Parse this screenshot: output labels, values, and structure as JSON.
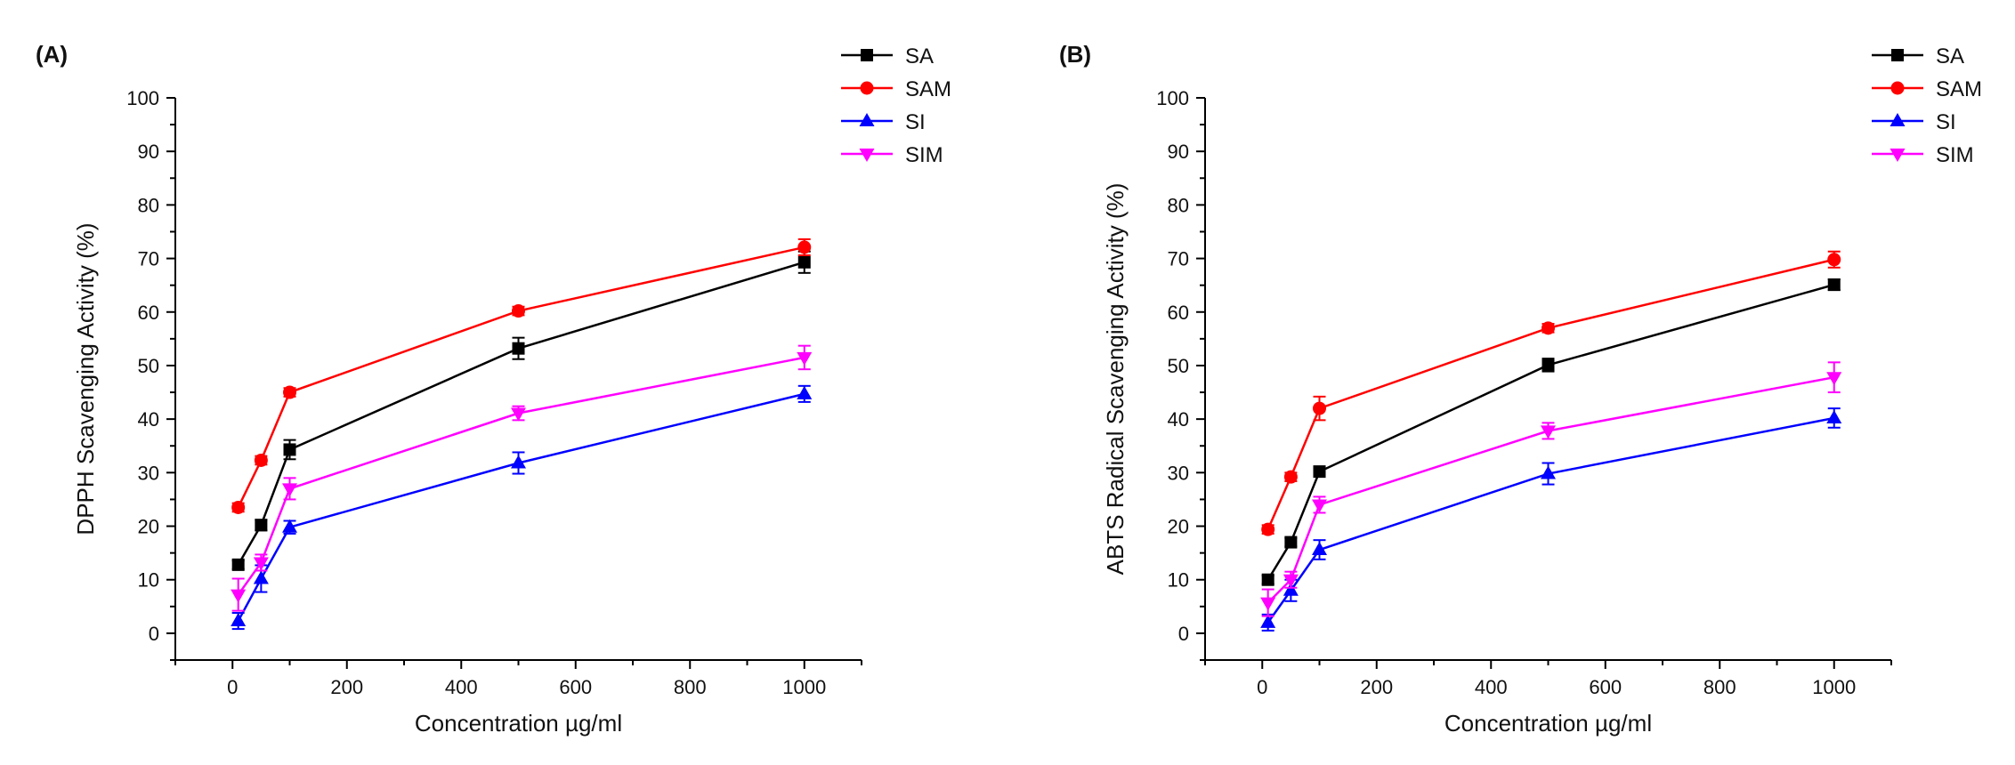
{
  "colors": {
    "SA": "#000000",
    "SAM": "#ff0000",
    "SI": "#0000ff",
    "SIM": "#ff00ff",
    "axis": "#000000"
  },
  "chart_data": [
    {
      "type": "line",
      "panel_label": "(A)",
      "xlabel": "Concentration µg/ml",
      "ylabel": "DPPH Scavenging Activity (%)",
      "xlim": [
        -100,
        1100
      ],
      "ylim": [
        -5,
        100
      ],
      "xticks": [
        0,
        200,
        400,
        600,
        800,
        1000
      ],
      "yticks": [
        0,
        10,
        20,
        30,
        40,
        50,
        60,
        70,
        80,
        90,
        100
      ],
      "x": [
        10,
        50,
        100,
        500,
        1000
      ],
      "grid": false,
      "legend": "top-right",
      "series": [
        {
          "name": "SA",
          "marker": "square",
          "values": [
            12.8,
            20.2,
            34.3,
            53.2,
            69.3
          ],
          "errors": [
            0.8,
            1.0,
            1.8,
            2.0,
            2.0
          ]
        },
        {
          "name": "SAM",
          "marker": "circle",
          "values": [
            23.5,
            32.3,
            45.0,
            60.2,
            72.1
          ],
          "errors": [
            0.8,
            0.8,
            0.8,
            0.8,
            1.5
          ]
        },
        {
          "name": "SI",
          "marker": "triangle-up",
          "values": [
            2.3,
            10.2,
            19.8,
            31.8,
            44.7
          ],
          "errors": [
            1.5,
            2.5,
            1.2,
            2.0,
            1.5
          ]
        },
        {
          "name": "SIM",
          "marker": "triangle-down",
          "values": [
            7.2,
            13.2,
            27.0,
            41.1,
            51.5
          ],
          "errors": [
            3.0,
            1.5,
            2.0,
            1.3,
            2.2
          ]
        }
      ]
    },
    {
      "type": "line",
      "panel_label": "(B)",
      "xlabel": "Concentration µg/ml",
      "ylabel": "ABTS Radical Scavenging Activity (%)",
      "xlim": [
        -100,
        1100
      ],
      "ylim": [
        -5,
        100
      ],
      "xticks": [
        0,
        200,
        400,
        600,
        800,
        1000
      ],
      "yticks": [
        0,
        10,
        20,
        30,
        40,
        50,
        60,
        70,
        80,
        90,
        100
      ],
      "x": [
        10,
        50,
        100,
        500,
        1000
      ],
      "grid": false,
      "legend": "top-right",
      "series": [
        {
          "name": "SA",
          "marker": "square",
          "values": [
            10.0,
            17.0,
            30.2,
            50.1,
            65.1
          ],
          "errors": [
            0.8,
            0.8,
            0.8,
            1.2,
            1.0
          ]
        },
        {
          "name": "SAM",
          "marker": "circle",
          "values": [
            19.4,
            29.2,
            42.0,
            57.0,
            69.8
          ],
          "errors": [
            0.8,
            0.8,
            2.2,
            0.8,
            1.5
          ]
        },
        {
          "name": "SI",
          "marker": "triangle-up",
          "values": [
            2.0,
            8.0,
            15.6,
            29.8,
            40.2
          ],
          "errors": [
            1.5,
            2.0,
            1.8,
            2.0,
            1.8
          ]
        },
        {
          "name": "SIM",
          "marker": "triangle-down",
          "values": [
            5.7,
            10.0,
            24.0,
            37.8,
            47.8
          ],
          "errors": [
            2.5,
            1.5,
            1.5,
            1.5,
            2.8
          ]
        }
      ]
    }
  ]
}
